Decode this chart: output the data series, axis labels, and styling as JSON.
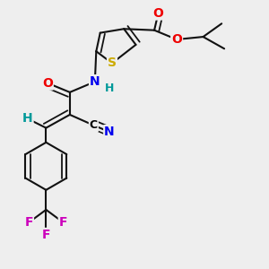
{
  "background_color": "#eeeeee",
  "figsize": [
    3.0,
    3.0
  ],
  "dpi": 100,
  "atom_colors": {
    "S": "#ccaa00",
    "N": "#0000ee",
    "O": "#ee0000",
    "F": "#cc00bb",
    "H": "#009999",
    "C": "#000000"
  },
  "bond_color": "#111111",
  "bond_lw": 1.5,
  "dbo": 0.018
}
